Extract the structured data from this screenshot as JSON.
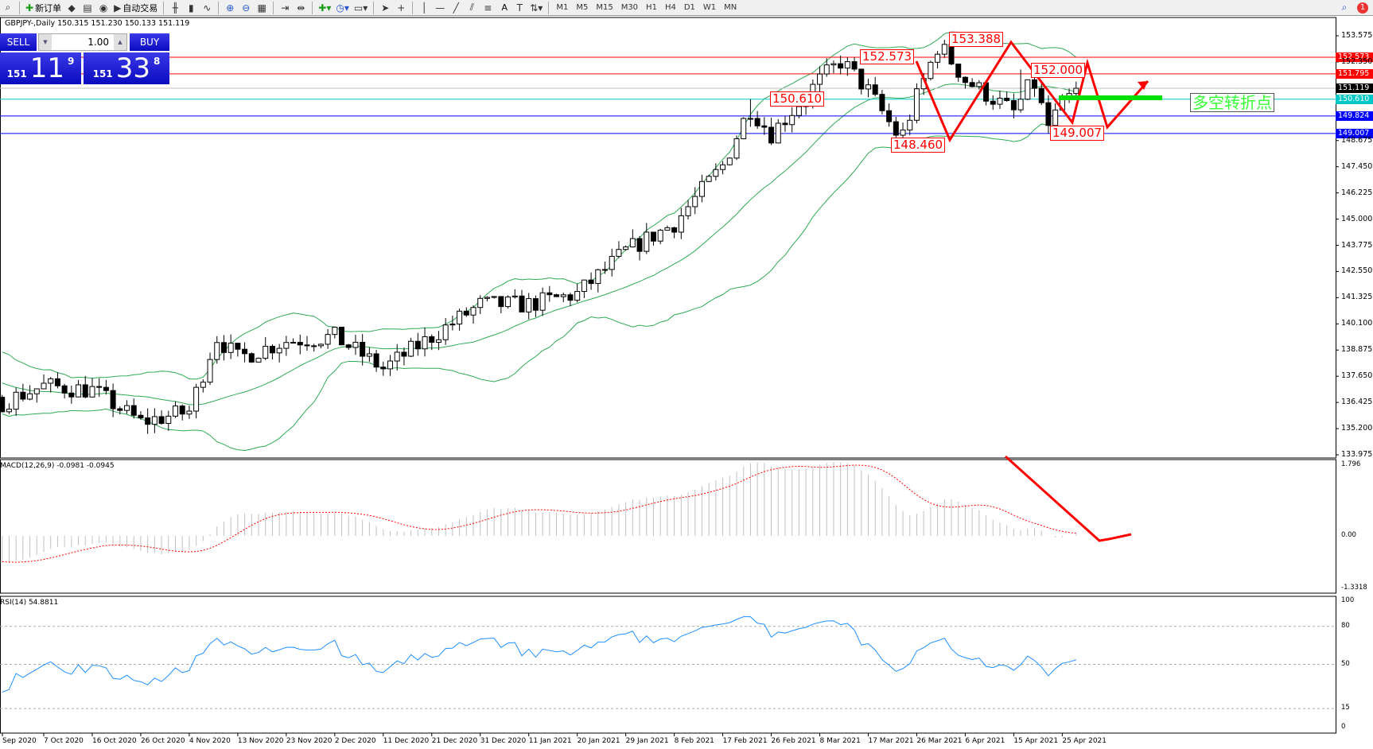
{
  "toolbar": {
    "items": [
      {
        "icon": "history-icon"
      },
      {
        "icon": "new-order-icon",
        "label": "新订单"
      },
      {
        "icon": "metaeditor-icon"
      },
      {
        "icon": "terminal-icon"
      },
      {
        "icon": "signals-icon"
      },
      {
        "icon": "auto-trading-icon",
        "label": "自动交易"
      },
      {
        "icon": "bar-chart-icon"
      },
      {
        "icon": "candlestick-icon"
      },
      {
        "icon": "line-chart-icon"
      },
      {
        "icon": "zoom-in-icon"
      },
      {
        "icon": "zoom-out-icon"
      },
      {
        "icon": "tile-windows-icon"
      },
      {
        "icon": "chart-shift-icon"
      },
      {
        "icon": "autoscroll-icon"
      },
      {
        "icon": "indicators-icon"
      },
      {
        "icon": "periods-icon"
      },
      {
        "icon": "templates-icon"
      },
      {
        "icon": "cursor-icon"
      },
      {
        "icon": "crosshair-icon"
      },
      {
        "icon": "vertical-line-icon"
      },
      {
        "icon": "horizontal-line-icon"
      },
      {
        "icon": "trendline-icon"
      },
      {
        "icon": "equidistant-channel-icon"
      },
      {
        "icon": "fibonacci-icon"
      },
      {
        "icon": "text-icon",
        "label": "A"
      },
      {
        "icon": "text-label-icon"
      },
      {
        "icon": "arrows-icon"
      }
    ],
    "timeframes": [
      "M1",
      "M5",
      "M15",
      "M30",
      "H1",
      "H4",
      "D1",
      "W1",
      "MN"
    ],
    "notification_count": "1"
  },
  "chart": {
    "header": "GBPJPY-,Daily  150.315 151.230 150.133 151.119",
    "symbol": "GBPJPY-",
    "period": "Daily",
    "open": "150.315",
    "high": "151.230",
    "low": "150.133",
    "close": "151.119"
  },
  "trade_panel": {
    "sell_label": "SELL",
    "buy_label": "BUY",
    "lot": "1.00",
    "sell_price": {
      "big": "151",
      "main": "11",
      "pip": "9"
    },
    "buy_price": {
      "big": "151",
      "main": "33",
      "pip": "8"
    }
  },
  "colors": {
    "bull": "#ffffff",
    "bear": "#000000",
    "bands": "#2eaa55",
    "rsi": "#1e90ff",
    "macd_hist": "#c0c0c0",
    "macd_signal": "#ff0000",
    "annotation": "#ff0000",
    "turning_point": "#00e000"
  },
  "price_axis": {
    "ticks": [
      "153.575",
      "152.350",
      "148.675",
      "147.450",
      "146.225",
      "145.000",
      "143.775",
      "142.550",
      "141.325",
      "140.100",
      "138.875",
      "137.650",
      "136.425",
      "135.200",
      "133.975"
    ]
  },
  "horizontal_lines": [
    {
      "price": 152.573,
      "label": "152.573",
      "color": "#ff0000"
    },
    {
      "price": 151.795,
      "label": "151.795",
      "color": "#ff0000"
    },
    {
      "price": 151.119,
      "label": "151.119",
      "color": "#000000",
      "line": "#c0c0c0"
    },
    {
      "price": 150.61,
      "label": "150.610",
      "color": "#00c8c8"
    },
    {
      "price": 149.824,
      "label": "149.824",
      "color": "#0000ff"
    },
    {
      "price": 149.007,
      "label": "149.007",
      "color": "#0000ff"
    }
  ],
  "annotations": [
    {
      "label": "150.610",
      "value": 150.61,
      "date": "22 Feb 2021",
      "kind": "high"
    },
    {
      "label": "152.573",
      "value": 152.573,
      "date": "15 Mar 2021",
      "kind": "high"
    },
    {
      "label": "148.460",
      "value": 148.46,
      "date": "23 Mar 2021",
      "kind": "low"
    },
    {
      "label": "153.388",
      "value": 153.388,
      "date": "1 Apr 2021",
      "kind": "high"
    },
    {
      "label": "152.000",
      "value": 152.0,
      "date": "16 Apr 2021",
      "kind": "high"
    },
    {
      "label": "149.007",
      "value": 149.007,
      "date": "22 Apr 2021",
      "kind": "low"
    }
  ],
  "turning_point_note": "多空转折点",
  "chart_data": {
    "type": "candlestick",
    "indicators": [
      "Bollinger Bands(20,2)",
      "MACD(12,26,9)",
      "RSI(14)"
    ],
    "approx_closes": [
      {
        "date": "28 Sep 2020",
        "close": 136.3
      },
      {
        "date": "7 Oct 2020",
        "close": 137.2
      },
      {
        "date": "16 Oct 2020",
        "close": 137.0
      },
      {
        "date": "26 Oct 2020",
        "close": 135.5
      },
      {
        "date": "4 Nov 2020",
        "close": 136.0
      },
      {
        "date": "9 Nov 2020",
        "close": 139.5
      },
      {
        "date": "13 Nov 2020",
        "close": 138.5
      },
      {
        "date": "23 Nov 2020",
        "close": 139.3
      },
      {
        "date": "2 Dec 2020",
        "close": 139.5
      },
      {
        "date": "11 Dec 2020",
        "close": 138.0
      },
      {
        "date": "21 Dec 2020",
        "close": 139.5
      },
      {
        "date": "31 Dec 2020",
        "close": 141.0
      },
      {
        "date": "11 Jan 2021",
        "close": 141.0
      },
      {
        "date": "20 Jan 2021",
        "close": 141.5
      },
      {
        "date": "29 Jan 2021",
        "close": 143.5
      },
      {
        "date": "8 Feb 2021",
        "close": 144.8
      },
      {
        "date": "17 Feb 2021",
        "close": 147.5
      },
      {
        "date": "22 Feb 2021",
        "close": 150.2
      },
      {
        "date": "26 Feb 2021",
        "close": 149.0
      },
      {
        "date": "8 Mar 2021",
        "close": 151.5
      },
      {
        "date": "12 Mar 2021",
        "close": 152.4
      },
      {
        "date": "17 Mar 2021",
        "close": 151.0
      },
      {
        "date": "23 Mar 2021",
        "close": 148.7
      },
      {
        "date": "26 Mar 2021",
        "close": 150.7
      },
      {
        "date": "31 Mar 2021",
        "close": 153.2
      },
      {
        "date": "6 Apr 2021",
        "close": 151.5
      },
      {
        "date": "15 Apr 2021",
        "close": 150.0
      },
      {
        "date": "19 Apr 2021",
        "close": 151.5
      },
      {
        "date": "22 Apr 2021",
        "close": 149.3
      },
      {
        "date": "25 Apr 2021",
        "close": 150.3
      },
      {
        "date": "28 Apr 2021",
        "close": 151.119
      }
    ],
    "price_range": [
      133.975,
      153.575
    ]
  },
  "macd": {
    "label": "MACD(12,26,9) -0.0981 -0.0945",
    "axis": [
      "1.796",
      "0.00",
      "-1.3318"
    ],
    "range": [
      -1.3318,
      1.796
    ]
  },
  "rsi": {
    "label": "RSI(14) 54.8811",
    "axis": [
      "100",
      "80",
      "50",
      "15",
      "0"
    ],
    "levels": [
      80,
      50,
      15
    ]
  },
  "time_axis": [
    "Sep 2020",
    "7 Oct 2020",
    "16 Oct 2020",
    "26 Oct 2020",
    "4 Nov 2020",
    "13 Nov 2020",
    "23 Nov 2020",
    "2 Dec 2020",
    "11 Dec 2020",
    "21 Dec 2020",
    "31 Dec 2020",
    "11 Jan 2021",
    "20 Jan 2021",
    "29 Jan 2021",
    "8 Feb 2021",
    "17 Feb 2021",
    "26 Feb 2021",
    "8 Mar 2021",
    "17 Mar 2021",
    "26 Mar 2021",
    "6 Apr 2021",
    "15 Apr 2021",
    "25 Apr 2021"
  ]
}
